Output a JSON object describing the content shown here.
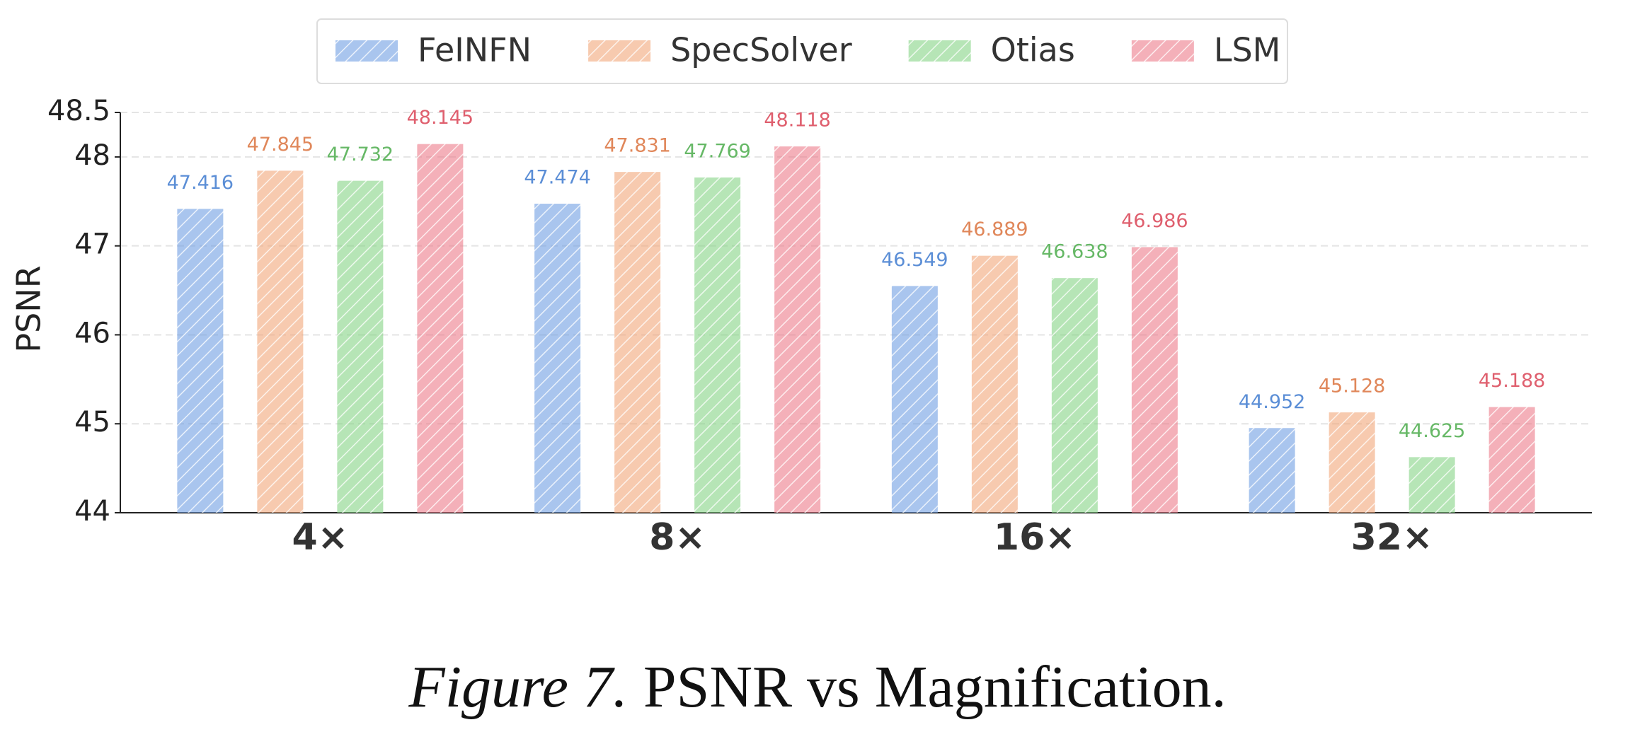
{
  "chart_data": {
    "type": "bar",
    "ylabel": "PSNR",
    "categories": [
      "4×",
      "8×",
      "16×",
      "32×"
    ],
    "series": [
      {
        "name": "FeINFN",
        "color": "#6f9fe3",
        "label_color": "#5b8ed6",
        "values": [
          47.416,
          47.474,
          46.549,
          44.952
        ]
      },
      {
        "name": "SpecSolver",
        "color": "#f2a67a",
        "label_color": "#e0875a",
        "values": [
          47.845,
          47.831,
          46.889,
          45.128
        ]
      },
      {
        "name": "Otias",
        "color": "#86d486",
        "label_color": "#66b866",
        "values": [
          47.732,
          47.769,
          46.638,
          44.625
        ]
      },
      {
        "name": "LSM",
        "color": "#ec7c8a",
        "label_color": "#df5f6e",
        "values": [
          48.145,
          48.118,
          46.986,
          45.188
        ]
      }
    ],
    "ylim": [
      44,
      48.5
    ],
    "yticks": [
      44,
      45,
      46,
      47,
      48,
      48.5
    ],
    "grid": true,
    "legend": "top",
    "caption": {
      "label": "Figure 7.",
      "text": "PSNR vs Magnification."
    }
  }
}
